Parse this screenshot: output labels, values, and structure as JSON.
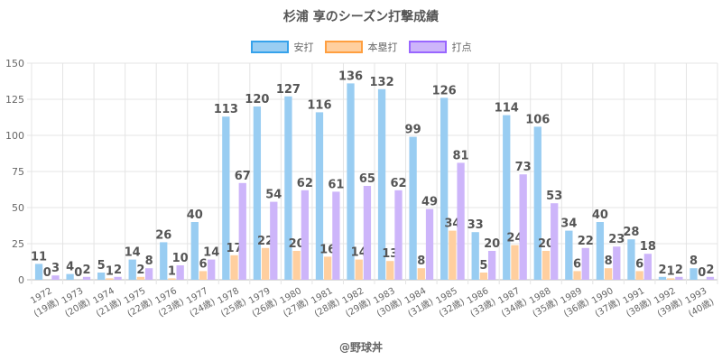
{
  "chart_data": {
    "type": "bar",
    "title": "杉浦 享のシーズン打撃成績",
    "xlabel": "",
    "ylabel": "",
    "ylim": [
      0,
      150
    ],
    "yticks": [
      0,
      25,
      50,
      75,
      100,
      125,
      150
    ],
    "grid": true,
    "legend_position": "top-center",
    "categories": [
      [
        "1972",
        "(19歳)"
      ],
      [
        "1973",
        "(20歳)"
      ],
      [
        "1974",
        "(21歳)"
      ],
      [
        "1975",
        "(22歳)"
      ],
      [
        "1976",
        "(23歳)"
      ],
      [
        "1977",
        "(24歳)"
      ],
      [
        "1978",
        "(25歳)"
      ],
      [
        "1979",
        "(26歳)"
      ],
      [
        "1980",
        "(27歳)"
      ],
      [
        "1981",
        "(28歳)"
      ],
      [
        "1982",
        "(29歳)"
      ],
      [
        "1983",
        "(30歳)"
      ],
      [
        "1984",
        "(31歳)"
      ],
      [
        "1985",
        "(32歳)"
      ],
      [
        "1986",
        "(33歳)"
      ],
      [
        "1987",
        "(34歳)"
      ],
      [
        "1988",
        "(35歳)"
      ],
      [
        "1989",
        "(36歳)"
      ],
      [
        "1990",
        "(37歳)"
      ],
      [
        "1991",
        "(38歳)"
      ],
      [
        "1992",
        "(39歳)"
      ],
      [
        "1993",
        "(40歳)"
      ]
    ],
    "series": [
      {
        "name": "安打",
        "color": "#99cdf2",
        "border": "#36a2eb",
        "values": [
          11,
          4,
          5,
          14,
          26,
          40,
          113,
          120,
          127,
          116,
          136,
          132,
          99,
          126,
          33,
          114,
          106,
          34,
          40,
          28,
          2,
          8
        ]
      },
      {
        "name": "本塁打",
        "color": "#ffcf9f",
        "border": "#ff9f40",
        "values": [
          0,
          0,
          1,
          2,
          1,
          6,
          17,
          22,
          20,
          16,
          14,
          13,
          8,
          34,
          5,
          24,
          20,
          6,
          8,
          6,
          1,
          0
        ]
      },
      {
        "name": "打点",
        "color": "#cdb5fa",
        "border": "#9966ff",
        "values": [
          3,
          2,
          2,
          8,
          10,
          14,
          67,
          54,
          62,
          61,
          65,
          62,
          49,
          81,
          20,
          73,
          53,
          22,
          23,
          18,
          2,
          2
        ]
      }
    ]
  },
  "credit": "@野球丼"
}
